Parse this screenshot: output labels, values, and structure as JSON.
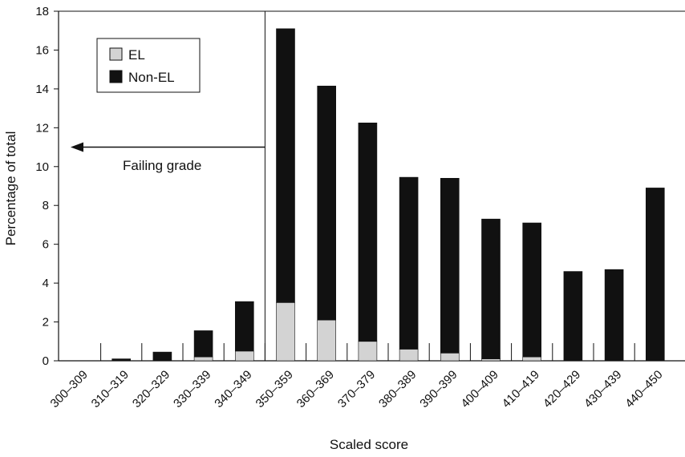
{
  "chart_data": {
    "type": "bar",
    "stacked": true,
    "categories": [
      "300–309",
      "310–319",
      "320–329",
      "330–339",
      "340–349",
      "350–359",
      "360–369",
      "370–379",
      "380–389",
      "390–399",
      "400–409",
      "410–419",
      "420–429",
      "430–439",
      "440–450"
    ],
    "series": [
      {
        "name": "EL",
        "color": "#d3d3d3",
        "values": [
          0,
          0,
          0,
          0.2,
          0.5,
          3.0,
          2.1,
          1.0,
          0.6,
          0.4,
          0.1,
          0.2,
          0,
          0,
          0
        ]
      },
      {
        "name": "Non-EL",
        "color": "#111111",
        "values": [
          0,
          0.1,
          0.45,
          1.35,
          2.55,
          14.1,
          12.05,
          11.25,
          8.85,
          9.0,
          7.2,
          6.9,
          4.6,
          4.7,
          8.9
        ]
      }
    ],
    "xlabel": "Scaled score",
    "ylabel": "Percentage of total",
    "ylim": [
      0,
      18
    ],
    "yticks": [
      0,
      2,
      4,
      6,
      8,
      10,
      12,
      14,
      16,
      18
    ],
    "legend_position": "top-left",
    "annotations": [
      {
        "text": "Failing grade",
        "arrow": "left",
        "at_y": 11,
        "from_category": "350–359"
      }
    ]
  }
}
